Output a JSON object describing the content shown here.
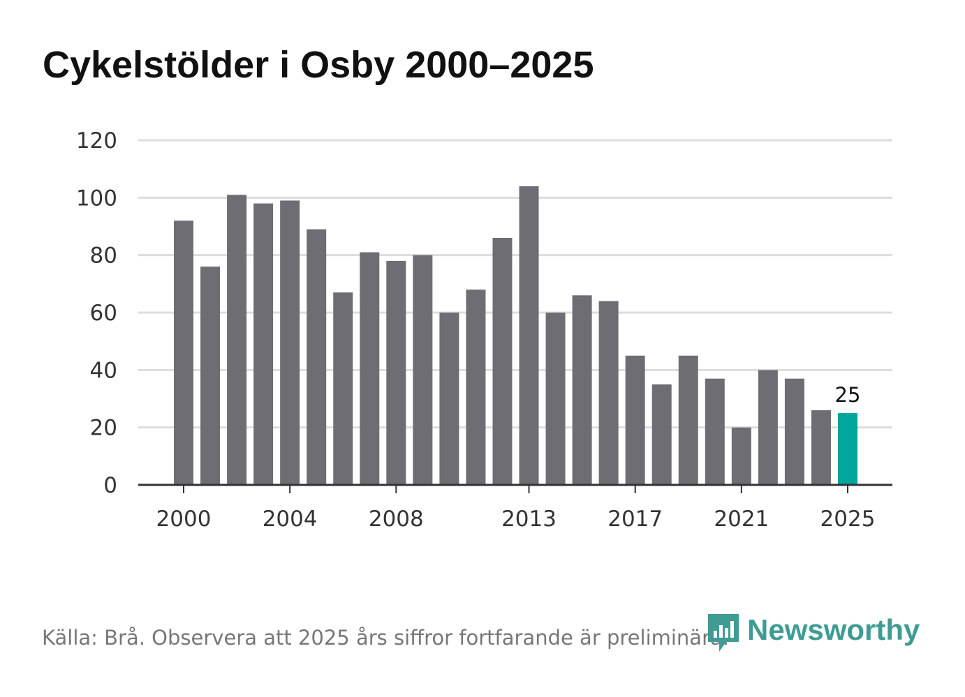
{
  "title": "Cykelstölder i Osby 2000–2025",
  "source_note": "Källa: Brå. Observera att 2025 års siffror fortfarande är preliminära.",
  "brand": {
    "name": "Newsworthy",
    "icon": "newsworthy-logo-icon"
  },
  "colors": {
    "bar": "#6e6d73",
    "highlight": "#00a59b",
    "grid": "#dddddd",
    "axis": "#333333",
    "brand": "#3f9c93"
  },
  "chart_data": {
    "type": "bar",
    "title": "Cykelstölder i Osby 2000–2025",
    "xlabel": "",
    "ylabel": "",
    "categories": [
      "2000",
      "2001",
      "2002",
      "2003",
      "2004",
      "2005",
      "2006",
      "2007",
      "2008",
      "2009",
      "2010",
      "2011",
      "2012",
      "2013",
      "2014",
      "2015",
      "2016",
      "2017",
      "2018",
      "2019",
      "2020",
      "2021",
      "2022",
      "2023",
      "2024",
      "2025"
    ],
    "values": [
      92,
      76,
      101,
      98,
      99,
      89,
      67,
      81,
      78,
      80,
      60,
      68,
      86,
      104,
      60,
      66,
      64,
      45,
      35,
      45,
      37,
      20,
      40,
      37,
      26,
      25
    ],
    "highlight": "2025",
    "data_labels": [
      {
        "category": "2025",
        "text": "25"
      }
    ],
    "ylim": [
      0,
      120
    ],
    "yticks": [
      0,
      20,
      40,
      60,
      80,
      100,
      120
    ],
    "xticks": [
      "2000",
      "2004",
      "2008",
      "2013",
      "2017",
      "2021",
      "2025"
    ],
    "grid": true
  }
}
